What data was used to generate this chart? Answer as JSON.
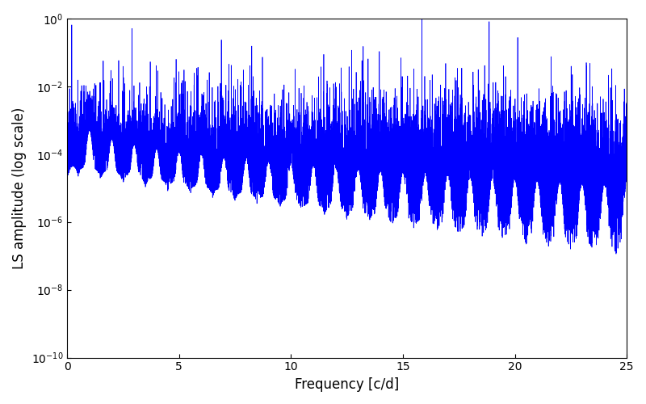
{
  "title": "",
  "xlabel": "Frequency [c/d]",
  "ylabel": "LS amplitude (log scale)",
  "xlim": [
    0,
    25
  ],
  "ylim": [
    1e-10,
    1.0
  ],
  "color": "#0000ff",
  "linewidth": 0.5,
  "yscale": "log",
  "figsize": [
    8.0,
    5.0
  ],
  "dpi": 100,
  "n_points": 25000,
  "freq_max": 25.0,
  "seed": 42
}
